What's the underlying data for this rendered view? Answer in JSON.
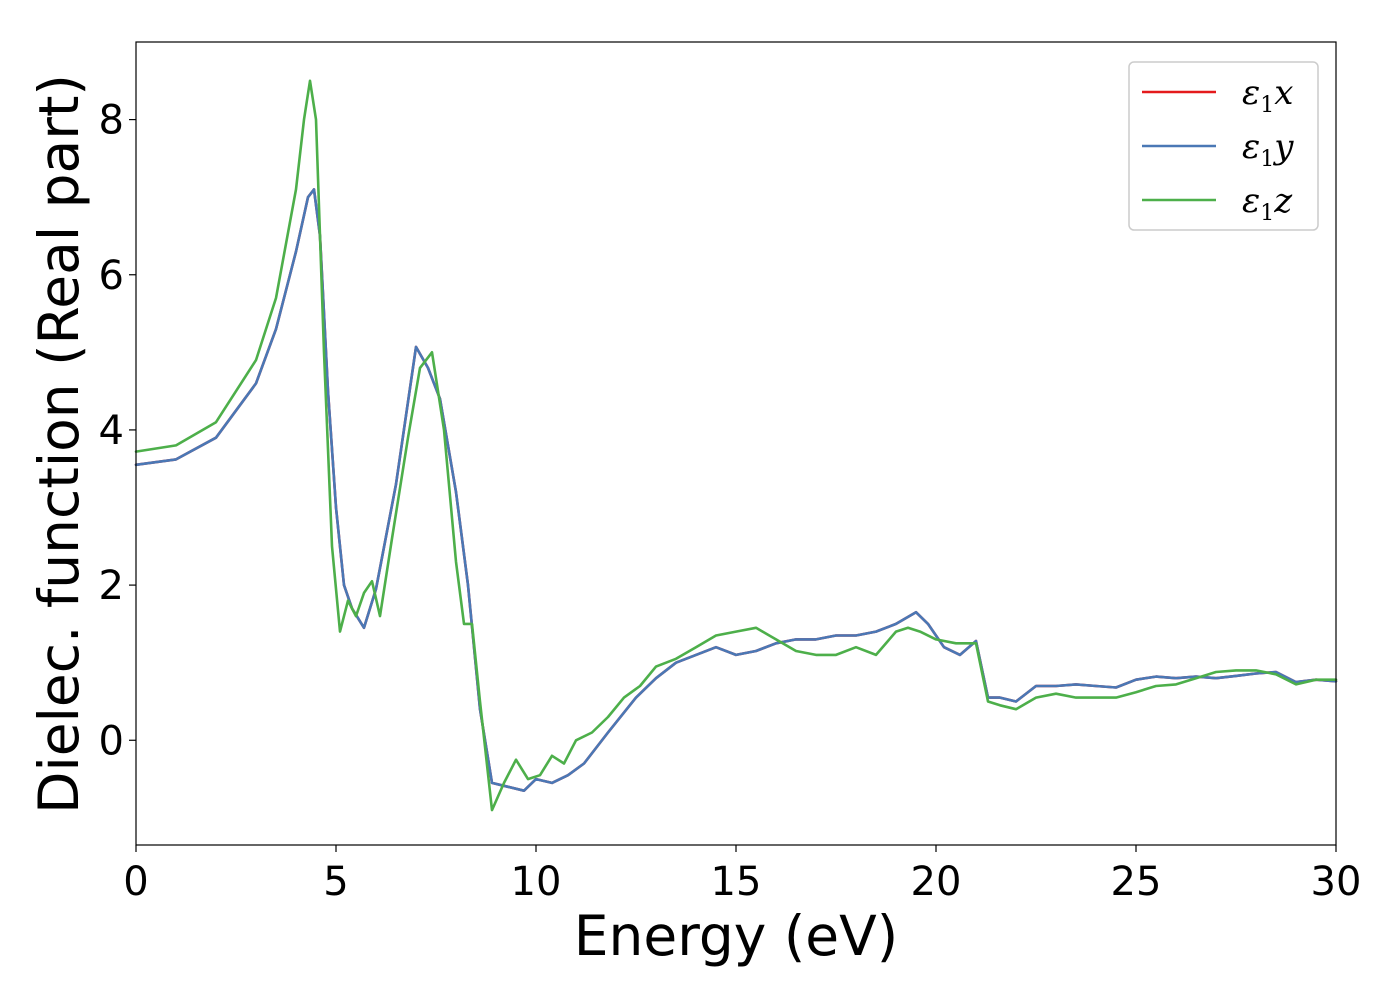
{
  "chart_data": {
    "type": "line",
    "title": "",
    "xlabel": "Energy (eV)",
    "ylabel": "Dielec. function (Real part)",
    "xlim": [
      0,
      30
    ],
    "ylim": [
      -1.35,
      9.0
    ],
    "x_ticks": [
      0,
      5,
      10,
      15,
      20,
      25,
      30
    ],
    "y_ticks": [
      0,
      2,
      4,
      6,
      8
    ],
    "grid": false,
    "legend_position": "top-right",
    "series": [
      {
        "name": "ε1x",
        "legend_symbol": "ε",
        "legend_sub": "1",
        "legend_var": "x",
        "color": "#e41a1c",
        "x": [
          0,
          1,
          2,
          3,
          3.5,
          4.0,
          4.3,
          4.45,
          4.6,
          4.8,
          5.0,
          5.2,
          5.4,
          5.7,
          6.0,
          6.5,
          7.0,
          7.3,
          7.6,
          8.0,
          8.3,
          8.6,
          8.9,
          9.3,
          9.7,
          10.0,
          10.4,
          10.8,
          11.2,
          11.8,
          12.5,
          13.0,
          13.5,
          14.0,
          14.5,
          15.0,
          15.5,
          16.0,
          16.5,
          17.0,
          17.5,
          18.0,
          18.5,
          19.0,
          19.5,
          19.8,
          20.2,
          20.6,
          21.0,
          21.3,
          21.6,
          22.0,
          22.5,
          23.0,
          23.5,
          24.0,
          24.5,
          25.0,
          25.5,
          26.0,
          26.5,
          27.0,
          27.5,
          28.0,
          28.5,
          29.0,
          29.5,
          30.0
        ],
        "y": [
          3.55,
          3.62,
          3.9,
          4.6,
          5.3,
          6.3,
          7.0,
          7.1,
          6.5,
          4.5,
          3.0,
          2.0,
          1.7,
          1.45,
          1.95,
          3.3,
          5.07,
          4.8,
          4.4,
          3.2,
          2.0,
          0.4,
          -0.55,
          -0.6,
          -0.65,
          -0.5,
          -0.55,
          -0.45,
          -0.3,
          0.1,
          0.55,
          0.8,
          1.0,
          1.1,
          1.2,
          1.1,
          1.15,
          1.25,
          1.3,
          1.3,
          1.35,
          1.35,
          1.4,
          1.5,
          1.65,
          1.5,
          1.2,
          1.1,
          1.28,
          0.55,
          0.55,
          0.5,
          0.7,
          0.7,
          0.72,
          0.7,
          0.68,
          0.78,
          0.82,
          0.8,
          0.82,
          0.8,
          0.83,
          0.86,
          0.88,
          0.75,
          0.78,
          0.76
        ]
      },
      {
        "name": "ε1y",
        "legend_symbol": "ε",
        "legend_sub": "1",
        "legend_var": "y",
        "color": "#4a78b5",
        "x": [
          0,
          1,
          2,
          3,
          3.5,
          4.0,
          4.3,
          4.45,
          4.6,
          4.8,
          5.0,
          5.2,
          5.4,
          5.7,
          6.0,
          6.5,
          7.0,
          7.3,
          7.6,
          8.0,
          8.3,
          8.6,
          8.9,
          9.3,
          9.7,
          10.0,
          10.4,
          10.8,
          11.2,
          11.8,
          12.5,
          13.0,
          13.5,
          14.0,
          14.5,
          15.0,
          15.5,
          16.0,
          16.5,
          17.0,
          17.5,
          18.0,
          18.5,
          19.0,
          19.5,
          19.8,
          20.2,
          20.6,
          21.0,
          21.3,
          21.6,
          22.0,
          22.5,
          23.0,
          23.5,
          24.0,
          24.5,
          25.0,
          25.5,
          26.0,
          26.5,
          27.0,
          27.5,
          28.0,
          28.5,
          29.0,
          29.5,
          30.0
        ],
        "y": [
          3.55,
          3.62,
          3.9,
          4.6,
          5.3,
          6.3,
          7.0,
          7.1,
          6.5,
          4.5,
          3.0,
          2.0,
          1.7,
          1.45,
          1.95,
          3.3,
          5.07,
          4.8,
          4.4,
          3.2,
          2.0,
          0.4,
          -0.55,
          -0.6,
          -0.65,
          -0.5,
          -0.55,
          -0.45,
          -0.3,
          0.1,
          0.55,
          0.8,
          1.0,
          1.1,
          1.2,
          1.1,
          1.15,
          1.25,
          1.3,
          1.3,
          1.35,
          1.35,
          1.4,
          1.5,
          1.65,
          1.5,
          1.2,
          1.1,
          1.28,
          0.55,
          0.55,
          0.5,
          0.7,
          0.7,
          0.72,
          0.7,
          0.68,
          0.78,
          0.82,
          0.8,
          0.82,
          0.8,
          0.83,
          0.86,
          0.88,
          0.75,
          0.78,
          0.76
        ]
      },
      {
        "name": "ε1z",
        "legend_symbol": "ε",
        "legend_sub": "1",
        "legend_var": "z",
        "color": "#4daf4a",
        "x": [
          0,
          1,
          2,
          3,
          3.5,
          4.0,
          4.2,
          4.35,
          4.5,
          4.7,
          4.9,
          5.1,
          5.3,
          5.5,
          5.7,
          5.9,
          6.1,
          6.4,
          6.8,
          7.1,
          7.4,
          7.7,
          8.0,
          8.2,
          8.4,
          8.6,
          8.9,
          9.2,
          9.5,
          9.8,
          10.1,
          10.4,
          10.7,
          11.0,
          11.4,
          11.8,
          12.2,
          12.6,
          13.0,
          13.5,
          14.0,
          14.5,
          15.0,
          15.5,
          16.0,
          16.5,
          17.0,
          17.5,
          18.0,
          18.5,
          19.0,
          19.3,
          19.6,
          20.0,
          20.5,
          21.0,
          21.3,
          21.6,
          22.0,
          22.5,
          23.0,
          23.5,
          24.0,
          24.5,
          25.0,
          25.5,
          26.0,
          26.5,
          27.0,
          27.5,
          28.0,
          28.5,
          29.0,
          29.5,
          30.0
        ],
        "y": [
          3.72,
          3.8,
          4.1,
          4.9,
          5.7,
          7.1,
          8.0,
          8.5,
          8.0,
          5.0,
          2.5,
          1.4,
          1.8,
          1.6,
          1.9,
          2.05,
          1.6,
          2.6,
          3.9,
          4.8,
          5.0,
          4.0,
          2.3,
          1.5,
          1.5,
          0.5,
          -0.9,
          -0.55,
          -0.25,
          -0.5,
          -0.45,
          -0.2,
          -0.3,
          0.0,
          0.1,
          0.3,
          0.55,
          0.7,
          0.95,
          1.05,
          1.2,
          1.35,
          1.4,
          1.45,
          1.3,
          1.15,
          1.1,
          1.1,
          1.2,
          1.1,
          1.4,
          1.45,
          1.4,
          1.3,
          1.25,
          1.25,
          0.5,
          0.45,
          0.4,
          0.55,
          0.6,
          0.55,
          0.55,
          0.55,
          0.62,
          0.7,
          0.72,
          0.8,
          0.88,
          0.9,
          0.9,
          0.85,
          0.72,
          0.78,
          0.78
        ]
      }
    ]
  }
}
